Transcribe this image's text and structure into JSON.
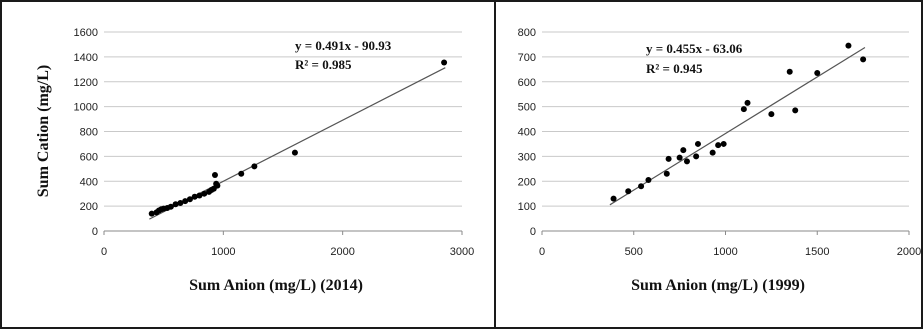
{
  "chart_data": [
    {
      "type": "scatter",
      "title": "",
      "xlabel": "Sum Anion (mg/L) (2014)",
      "ylabel": "Sum Cation  (mg/L)",
      "xlim": [
        0,
        3000
      ],
      "ylim": [
        0,
        1600
      ],
      "xticks": [
        0,
        1000,
        2000,
        3000
      ],
      "yticks": [
        0,
        200,
        400,
        600,
        800,
        1000,
        1200,
        1400,
        1600
      ],
      "grid": true,
      "trendline": {
        "slope": 0.491,
        "intercept": -90.93
      },
      "equation": "y = 0.491x - 90.93",
      "r2": "R² = 0.985",
      "points": [
        [
          400,
          140
        ],
        [
          440,
          150
        ],
        [
          460,
          165
        ],
        [
          480,
          175
        ],
        [
          500,
          180
        ],
        [
          530,
          185
        ],
        [
          560,
          195
        ],
        [
          600,
          215
        ],
        [
          640,
          225
        ],
        [
          680,
          240
        ],
        [
          720,
          255
        ],
        [
          760,
          275
        ],
        [
          800,
          285
        ],
        [
          840,
          300
        ],
        [
          880,
          315
        ],
        [
          900,
          330
        ],
        [
          920,
          340
        ],
        [
          930,
          450
        ],
        [
          940,
          380
        ],
        [
          950,
          365
        ],
        [
          1150,
          460
        ],
        [
          1260,
          520
        ],
        [
          1600,
          630
        ],
        [
          2850,
          1355
        ]
      ]
    },
    {
      "type": "scatter",
      "title": "",
      "xlabel": "Sum Anion (mg/L) (1999)",
      "ylabel": "",
      "xlim": [
        0,
        2000
      ],
      "ylim": [
        0,
        800
      ],
      "xticks": [
        0,
        500,
        1000,
        1500,
        2000
      ],
      "yticks": [
        0,
        100,
        200,
        300,
        400,
        500,
        600,
        700,
        800
      ],
      "grid": true,
      "trendline": {
        "slope": 0.455,
        "intercept": -63.06
      },
      "equation": "y = 0.455x - 63.06",
      "r2": "R² = 0.945",
      "points": [
        [
          390,
          130
        ],
        [
          470,
          160
        ],
        [
          540,
          180
        ],
        [
          580,
          205
        ],
        [
          680,
          230
        ],
        [
          690,
          290
        ],
        [
          750,
          295
        ],
        [
          770,
          325
        ],
        [
          790,
          280
        ],
        [
          840,
          300
        ],
        [
          850,
          350
        ],
        [
          930,
          315
        ],
        [
          960,
          345
        ],
        [
          990,
          350
        ],
        [
          1100,
          490
        ],
        [
          1120,
          515
        ],
        [
          1250,
          470
        ],
        [
          1350,
          640
        ],
        [
          1380,
          485
        ],
        [
          1500,
          635
        ],
        [
          1670,
          745
        ],
        [
          1750,
          690
        ]
      ]
    }
  ]
}
